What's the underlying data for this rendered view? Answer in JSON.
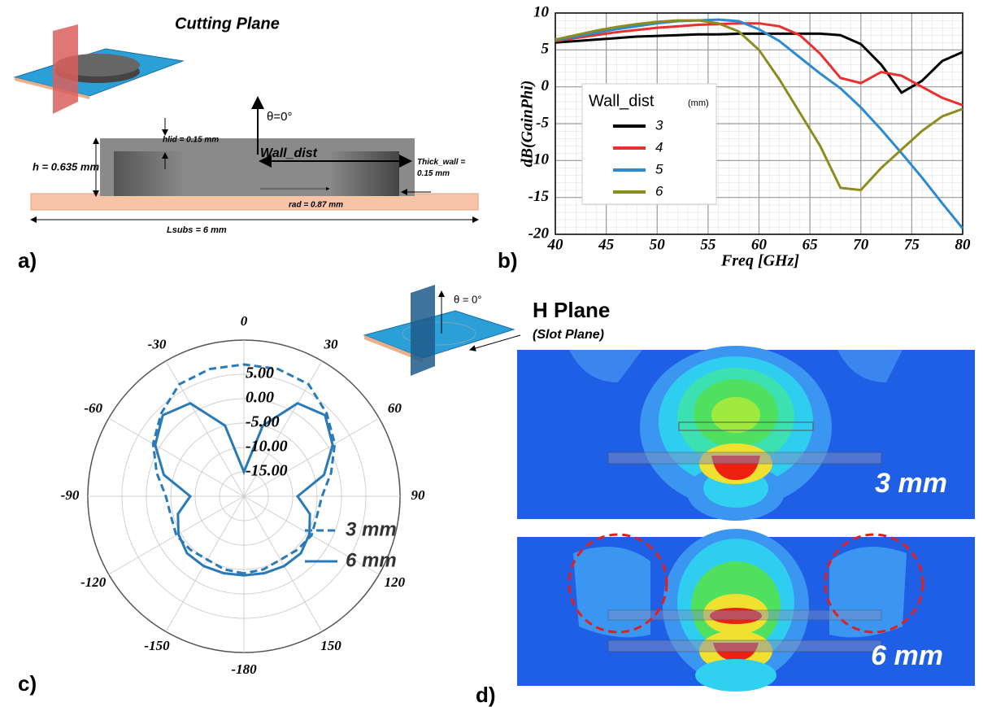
{
  "panel_a": {
    "title": "Cutting Plane",
    "theta": "θ=0°",
    "hlid": "hlid = 0.15 mm",
    "wall_dist": "Wall_dist",
    "height": "h = 0.635 mm",
    "thick_wall": [
      "Thick_wall =",
      "0.15 mm"
    ],
    "rad": "rad = 0.87 mm",
    "lsubs": "Lsubs = 6 mm",
    "panel_label": "a)"
  },
  "chart_data": [
    {
      "type": "line",
      "panel_label": "b)",
      "x_label": "Freq [GHz]",
      "y_label": "dB(GainPhi)",
      "x": [
        40,
        42,
        44,
        46,
        48,
        50,
        52,
        54,
        56,
        58,
        60,
        62,
        64,
        66,
        68,
        70,
        72,
        74,
        76,
        78,
        80
      ],
      "series": [
        {
          "name": "3",
          "color": "#000000",
          "values": [
            6.0,
            6.2,
            6.4,
            6.6,
            6.8,
            6.9,
            7.0,
            7.1,
            7.1,
            7.2,
            7.2,
            7.2,
            7.2,
            7.2,
            7.0,
            5.8,
            3.0,
            -0.8,
            0.8,
            3.5,
            4.7
          ]
        },
        {
          "name": "4",
          "color": "#e8312f",
          "values": [
            6.2,
            6.6,
            7.0,
            7.4,
            7.7,
            8.0,
            8.2,
            8.4,
            8.5,
            8.6,
            8.6,
            8.2,
            7.0,
            4.5,
            1.2,
            0.5,
            2.0,
            1.5,
            0,
            -1.5,
            -2.5
          ]
        },
        {
          "name": "5",
          "color": "#2b8ad0",
          "values": [
            6.3,
            6.8,
            7.3,
            7.8,
            8.2,
            8.6,
            8.9,
            9.0,
            9.1,
            8.9,
            7.8,
            6.2,
            4.0,
            1.8,
            -0.2,
            -2.8,
            -5.8,
            -9.0,
            -12.3,
            -15.8,
            -19.2
          ]
        },
        {
          "name": "6",
          "color": "#8c8c1f",
          "values": [
            6.4,
            7.0,
            7.6,
            8.1,
            8.5,
            8.8,
            9.0,
            9.0,
            8.6,
            7.5,
            5.0,
            1.0,
            -3.5,
            -8.0,
            -13.7,
            -14.0,
            -11.0,
            -8.5,
            -6.0,
            -4.0,
            -3.0
          ]
        }
      ],
      "xlim": [
        40,
        80
      ],
      "ylim": [
        -20,
        10
      ],
      "xticks": [
        40,
        45,
        50,
        55,
        60,
        65,
        70,
        75,
        80
      ],
      "yticks": [
        -20,
        -15,
        -10,
        -5,
        0,
        5,
        10
      ],
      "grid": true,
      "legend_title": "Wall_dist",
      "legend_unit": "(mm)",
      "legend": "left"
    },
    {
      "type": "polar",
      "panel_label": "c)",
      "theta": [
        -180,
        -165,
        -150,
        -135,
        -120,
        -105,
        -90,
        -75,
        -60,
        -45,
        -30,
        -15,
        0,
        15,
        30,
        45,
        60,
        75,
        90,
        105,
        120,
        135,
        150,
        165,
        180
      ],
      "series": [
        {
          "name": "3 mm",
          "color": "#2a7ab8",
          "dash": true,
          "values": [
            -4.2,
            -4.5,
            -5,
            -4.5,
            -4,
            -4.5,
            -4,
            -1.5,
            1.5,
            4,
            6.5,
            7,
            7,
            7,
            6.5,
            4,
            1.5,
            -1.5,
            -4,
            -4.5,
            -4,
            -4.5,
            -5,
            -4.5,
            -4.2
          ]
        },
        {
          "name": "6 mm",
          "color": "#2a7ab8",
          "dash": false,
          "values": [
            -3.8,
            -3.7,
            -3.5,
            -3.5,
            -4.5,
            -6,
            -9,
            -3,
            1,
            3.5,
            2,
            -5,
            -15,
            -5,
            2,
            3.5,
            1,
            -3,
            -9,
            -6,
            -4.5,
            -3.5,
            -3.5,
            -3.7,
            -3.8
          ]
        }
      ],
      "rlim": [
        -20,
        12
      ],
      "rticks": [
        {
          "value": -15,
          "label": "-15.00"
        },
        {
          "value": -10,
          "label": "-10.00"
        },
        {
          "value": -5,
          "label": "-5.00"
        },
        {
          "value": 0,
          "label": "0.00"
        },
        {
          "value": 5,
          "label": "5.00"
        }
      ],
      "thetaticks": [
        0,
        30,
        60,
        90,
        120,
        150,
        -180,
        -150,
        -120,
        -90,
        -60,
        -30
      ],
      "legend": "lower-right"
    }
  ],
  "panel_d": {
    "theta": "θ = 0°",
    "title": "H Plane",
    "subtitle": "(Slot Plane)",
    "top_label": "3 mm",
    "bottom_label": "6 mm",
    "panel_label": "d)"
  }
}
